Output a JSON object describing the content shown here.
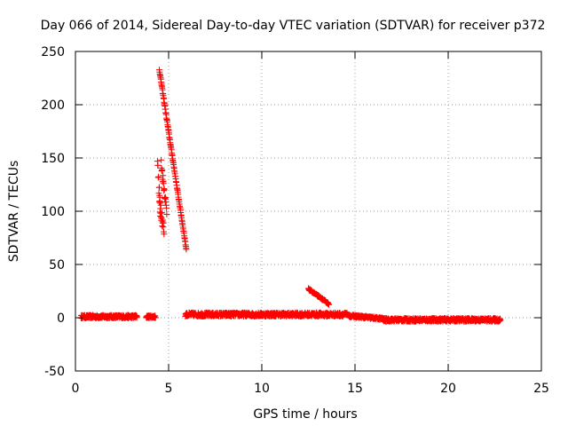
{
  "chart_data": {
    "type": "scatter",
    "title": "Day 066 of 2014, Sidereal Day-to-day VTEC variation (SDTVAR) for receiver p372",
    "xlabel": "GPS time / hours",
    "ylabel": "SDTVAR / TECUs",
    "xlim": [
      0,
      25
    ],
    "ylim": [
      -50,
      250
    ],
    "xticks": [
      "0",
      "5",
      "10",
      "15",
      "20",
      "25"
    ],
    "yticks": [
      "-50",
      "0",
      "50",
      "100",
      "150",
      "200",
      "250"
    ],
    "grid": true,
    "marker": "+",
    "color": "#ff0000",
    "series": [
      {
        "name": "p372",
        "segments": [
          {
            "t0": 0.3,
            "t1": 3.3,
            "v0": 1,
            "v1": 1,
            "noise": 1.5
          },
          {
            "t0": 3.8,
            "t1": 4.3,
            "v0": 1,
            "v1": 1,
            "noise": 1.2
          },
          {
            "t0": 4.4,
            "t1": 4.55,
            "v0": 150,
            "v1": 95,
            "noise": 6
          },
          {
            "t0": 4.5,
            "t1": 4.75,
            "v0": 115,
            "v1": 80,
            "noise": 8
          },
          {
            "t0": 4.6,
            "t1": 4.9,
            "v0": 145,
            "v1": 100,
            "noise": 5
          },
          {
            "t0": 4.5,
            "t1": 5.95,
            "v0": 233,
            "v1": 64,
            "noise": 1
          },
          {
            "t0": 5.9,
            "t1": 14.6,
            "v0": 3,
            "v1": 3,
            "noise": 1.8
          },
          {
            "t0": 12.5,
            "t1": 13.6,
            "v0": 27,
            "v1": 13,
            "noise": 0.8
          },
          {
            "t0": 14.6,
            "t1": 16.5,
            "v0": 2,
            "v1": -1,
            "noise": 1.2
          },
          {
            "t0": 16.5,
            "t1": 22.8,
            "v0": -2,
            "v1": -2,
            "noise": 1.6
          }
        ]
      }
    ]
  }
}
